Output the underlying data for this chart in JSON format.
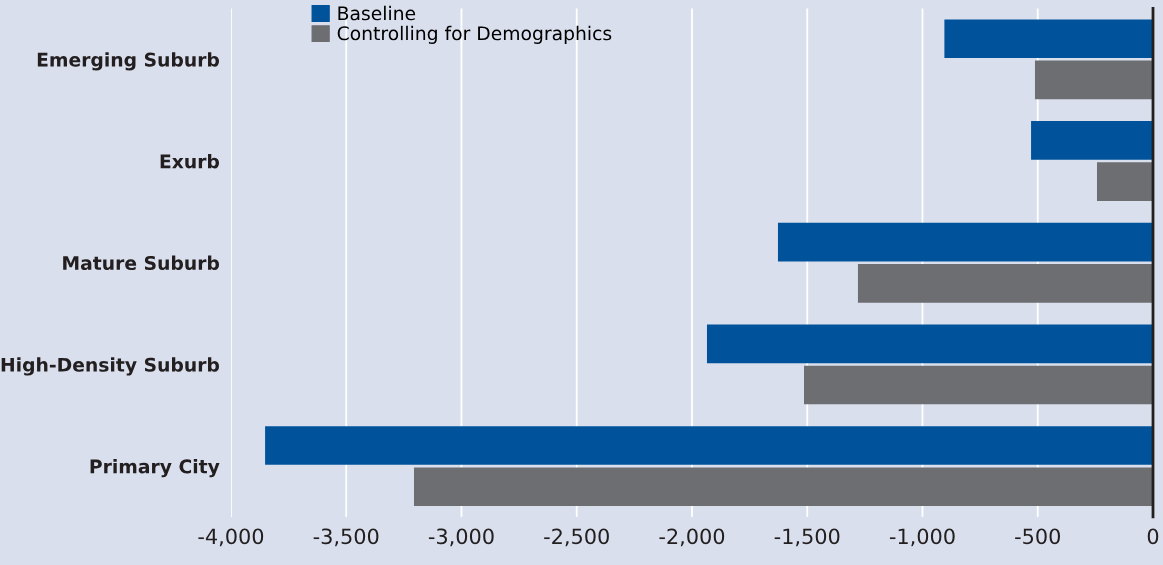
{
  "chart_data": {
    "type": "bar",
    "orientation": "horizontal",
    "categories": [
      "Emerging Suburb",
      "Exurb",
      "Mature Suburb",
      "High-Density Suburb",
      "Primary City"
    ],
    "series": [
      {
        "name": "Baseline",
        "color": "#00539b",
        "values": [
          -905,
          -529,
          -1627,
          -1935,
          -3852
        ]
      },
      {
        "name": "Controlling for Demographics",
        "color": "#6d6e71",
        "values": [
          -512,
          -243,
          -1280,
          -1514,
          -3206
        ]
      }
    ],
    "xlim": [
      -4000,
      0
    ],
    "xticks": [
      {
        "value": -4000,
        "label": "-4,000"
      },
      {
        "value": -3500,
        "label": "-3,500"
      },
      {
        "value": -3000,
        "label": "-3,000"
      },
      {
        "value": -2500,
        "label": "-2,500"
      },
      {
        "value": -2000,
        "label": "-2,000"
      },
      {
        "value": -1500,
        "label": "-1,500"
      },
      {
        "value": -1000,
        "label": "-1,000"
      },
      {
        "value": -500,
        "label": "-500"
      },
      0
    ],
    "grid": "x",
    "legend": "top left"
  }
}
